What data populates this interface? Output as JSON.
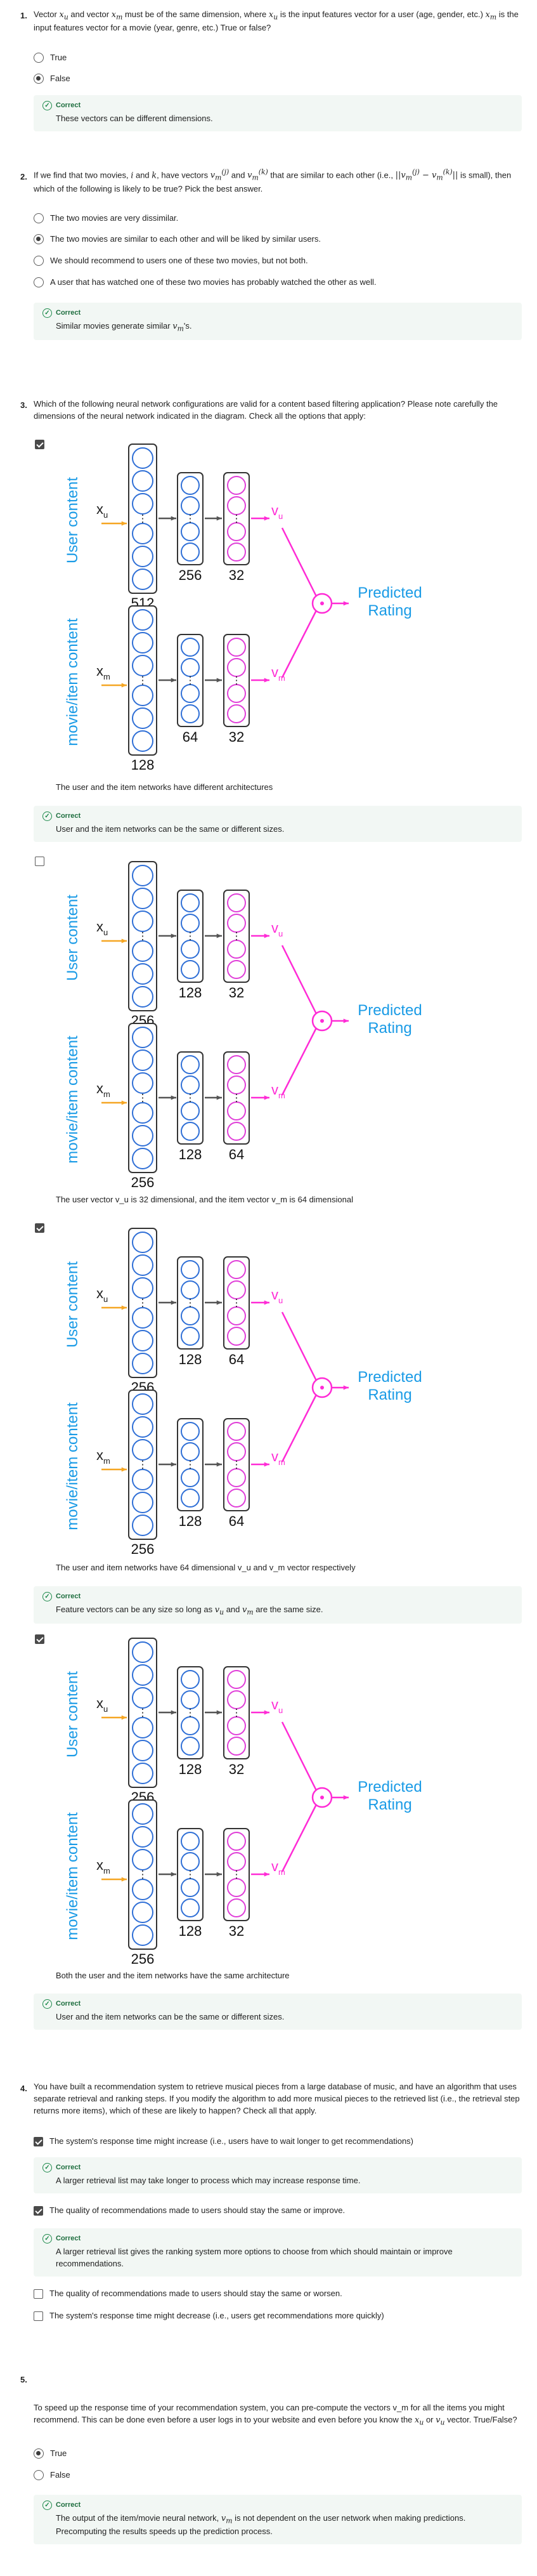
{
  "colors": {
    "accent_blue": "#1a9be6",
    "neuron_blue": "#2f6fd6",
    "neuron_pink": "#e03fd8",
    "arrow_orange": "#f5a623",
    "arrow_magenta": "#ff2bd6",
    "correct_green": "#1e8a4c"
  },
  "q1": {
    "number": "1.",
    "text_a": "Vector ",
    "text_b": " and vector ",
    "text_c": " must be of the same dimension, where ",
    "text_d": " is the input features vector for a user (age, gender, etc.) ",
    "text_e": " is the input features vector for a movie (year, genre, etc.) True or false?",
    "options": [
      "True",
      "False"
    ],
    "selected": 1,
    "feedback_head": "Correct",
    "feedback_text": "These vectors can be different dimensions."
  },
  "q2": {
    "number": "2.",
    "text_a": "If we find that two movies, ",
    "text_b": " and ",
    "text_c": ", have vectors ",
    "text_d": " and ",
    "text_e": " that are similar to each other (i.e., ",
    "text_f": " is small), then which of the following is likely to be true? Pick the best answer.",
    "options": [
      "The two movies are very dissimilar.",
      "The two movies are similar to each other and will be liked by similar users.",
      "We should recommend to users one of these two movies, but not both.",
      "A user that has watched one of these two movies has probably watched the other as well."
    ],
    "selected": 1,
    "feedback_head": "Correct",
    "feedback_text_a": "Similar movies generate similar ",
    "feedback_text_b": "'s."
  },
  "q3": {
    "number": "3.",
    "text": "Which of the following neural network configurations are valid for a content based filtering application? Please note carefully the dimensions of the neural network indicated in the diagram. Check all the options that apply:",
    "diagram_labels": {
      "user_content": "User content",
      "item_content": "movie/item content",
      "xu": "x",
      "xu_sub": "u",
      "xm": "x",
      "xm_sub": "m",
      "vu": "v",
      "vu_sub": "u",
      "vm": "v",
      "vm_sub": "m",
      "predicted": "Predicted",
      "rating": "Rating"
    },
    "options": [
      {
        "checked": true,
        "user_dims": [
          "512",
          "256",
          "32"
        ],
        "item_dims": [
          "128",
          "64",
          "32"
        ],
        "caption": "The user and the item networks have different architectures",
        "feedback_head": "Correct",
        "feedback_text": "User and the item networks can be the same or different sizes."
      },
      {
        "checked": false,
        "user_dims": [
          "256",
          "128",
          "32"
        ],
        "item_dims": [
          "256",
          "128",
          "64"
        ],
        "caption": "The user vector v_u is 32 dimensional, and the item vector v_m is 64 dimensional"
      },
      {
        "checked": true,
        "user_dims": [
          "256",
          "128",
          "64"
        ],
        "item_dims": [
          "256",
          "128",
          "64"
        ],
        "caption": "The user and item networks have 64 dimensional v_u and v_m vector respectively",
        "feedback_head": "Correct",
        "feedback_text_a": "Feature vectors can be any size so long as ",
        "feedback_text_b": " and ",
        "feedback_text_c": " are the same size."
      },
      {
        "checked": true,
        "user_dims": [
          "256",
          "128",
          "32"
        ],
        "item_dims": [
          "256",
          "128",
          "32"
        ],
        "caption": "Both the user and the item networks have the same architecture",
        "feedback_head": "Correct",
        "feedback_text": "User and the item networks can be the same or different sizes."
      }
    ]
  },
  "q4": {
    "number": "4.",
    "text": "You have built a recommendation system to retrieve musical pieces from a large database of music, and have an algorithm that uses separate retrieval and ranking steps. If you modify the algorithm to add more musical pieces to the retrieved list (i.e., the retrieval step returns more items), which of these are likely to happen? Check all that apply.",
    "options": [
      {
        "checked": true,
        "label": "The system's response time might increase (i.e., users have to wait longer to get recommendations)",
        "feedback_head": "Correct",
        "feedback_text": "A larger retrieval list may take longer to process which may increase response time."
      },
      {
        "checked": true,
        "label": "The quality of recommendations made to users should stay the same or improve.",
        "feedback_head": "Correct",
        "feedback_text": "A larger retrieval list gives the ranking system more options to choose from which should maintain or improve recommendations."
      },
      {
        "checked": false,
        "label": "The quality of recommendations made to users should stay the same or worsen."
      },
      {
        "checked": false,
        "label": "The system's response time might decrease (i.e., users get recommendations more quickly)"
      }
    ]
  },
  "q5": {
    "number": "5.",
    "text_a": "To speed up the response time of your recommendation system, you can pre-compute the vectors v_m for all the items you might recommend. This can be done even before a user logs in to your website and even before you know the ",
    "text_b": " or ",
    "text_c": " vector. True/False?",
    "options": [
      "True",
      "False"
    ],
    "selected": 0,
    "feedback_head": "Correct",
    "feedback_text_a": "The output of the item/movie neural network, ",
    "feedback_text_b": " is not dependent on the user network when making predictions. Precomputing the results speeds up the prediction process."
  }
}
